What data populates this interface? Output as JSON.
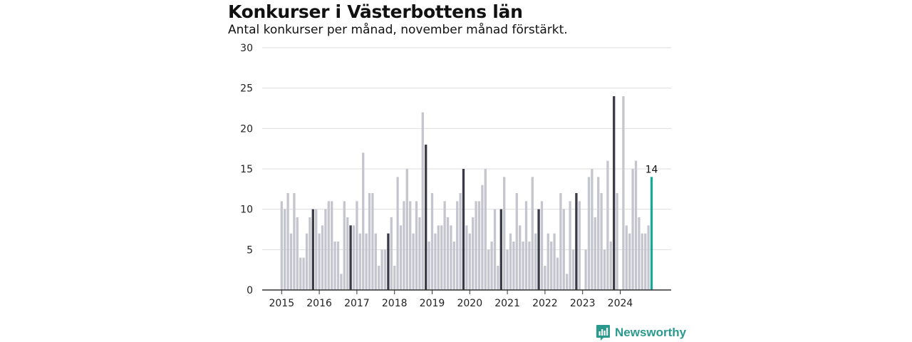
{
  "title": "Konkurser i Västerbottens län",
  "subtitle": "Antal konkurser per månad, november månad förstärkt.",
  "brand": {
    "name": "Newsworthy"
  },
  "colors": {
    "bar": "#c5c5cf",
    "highlight": "#3a3a48",
    "latest": "#1aa79a",
    "axis": "#333333",
    "grid": "#dddddd"
  },
  "chart_data": {
    "type": "bar",
    "title": "Konkurser i Västerbottens län",
    "subtitle": "Antal konkurser per månad, november månad förstärkt.",
    "xlabel": "",
    "ylabel": "",
    "ylim": [
      0,
      30
    ],
    "yticks": [
      0,
      5,
      10,
      15,
      20,
      25,
      30
    ],
    "grid": true,
    "x_tick_labels": [
      "2015",
      "2016",
      "2017",
      "2018",
      "2019",
      "2020",
      "2021",
      "2022",
      "2023",
      "2024"
    ],
    "start": "2015-01",
    "end": "2024-11",
    "highlight_month": "november",
    "latest_label": "14",
    "values": [
      11,
      10,
      12,
      7,
      12,
      9,
      4,
      4,
      7,
      9,
      10,
      10,
      7,
      8,
      10,
      11,
      11,
      6,
      6,
      2,
      11,
      9,
      8,
      8,
      11,
      7,
      17,
      7,
      12,
      12,
      7,
      3,
      5,
      5,
      7,
      9,
      3,
      14,
      8,
      11,
      15,
      11,
      7,
      11,
      9,
      22,
      18,
      6,
      12,
      7,
      8,
      8,
      11,
      9,
      8,
      6,
      11,
      12,
      15,
      8,
      7,
      9,
      11,
      11,
      13,
      15,
      5,
      6,
      10,
      3,
      10,
      14,
      5,
      7,
      6,
      12,
      8,
      6,
      11,
      6,
      14,
      7,
      10,
      11,
      3,
      7,
      6,
      7,
      4,
      12,
      10,
      2,
      11,
      5,
      12,
      11,
      0,
      5,
      14,
      15,
      9,
      14,
      12,
      5,
      16,
      6,
      24,
      12,
      0,
      24,
      8,
      7,
      15,
      16,
      9,
      7,
      7,
      8,
      14
    ]
  }
}
